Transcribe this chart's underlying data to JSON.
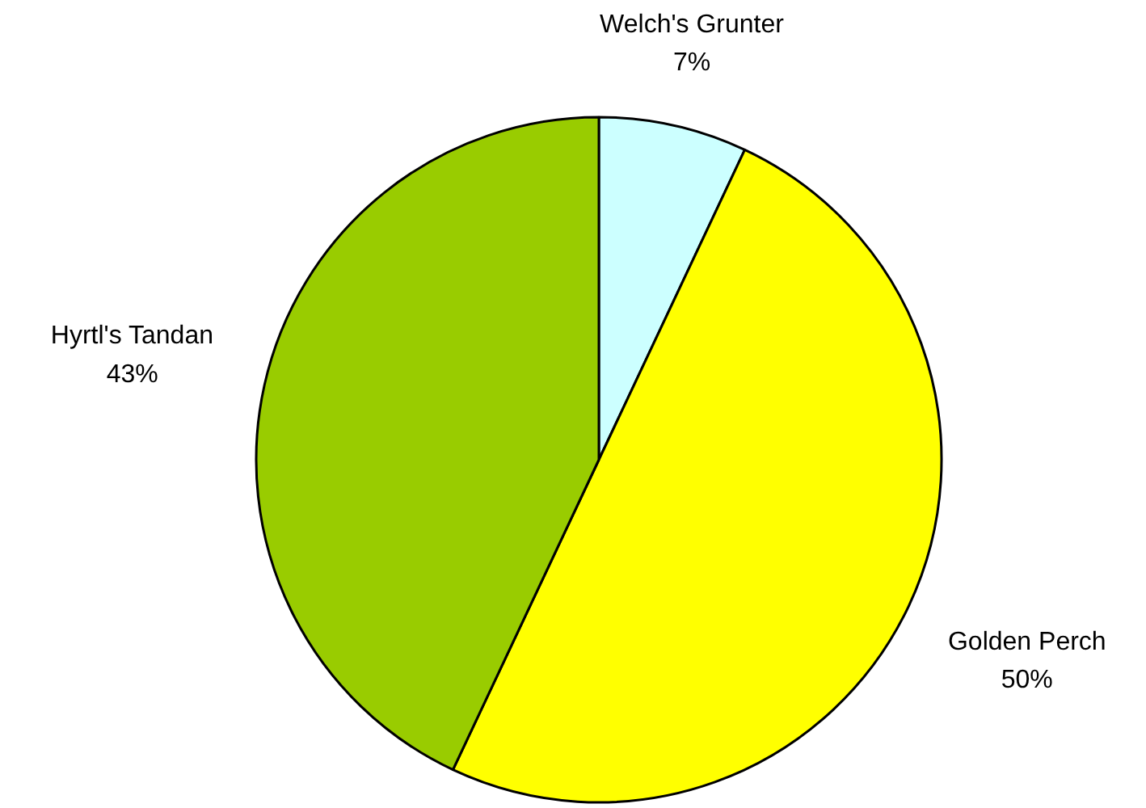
{
  "chart_data": {
    "type": "pie",
    "categories": [
      "Welch's Grunter",
      "Golden Perch",
      "Hyrtl's Tandan"
    ],
    "values": [
      7,
      50,
      43
    ],
    "colors": [
      "#ccffff",
      "#ffff00",
      "#99cc00"
    ],
    "value_labels": [
      "7%",
      "50%",
      "43%"
    ]
  }
}
